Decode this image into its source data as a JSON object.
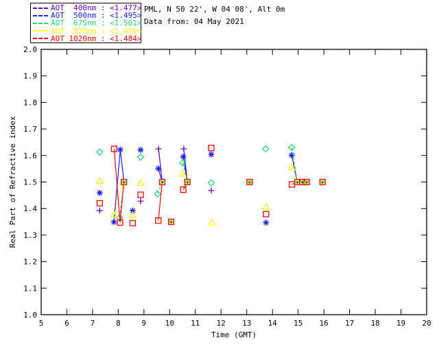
{
  "header": {
    "line1": "PML, N 50 22', W 04 08', Alt 0m",
    "line2": "Data from: 04 May 2021"
  },
  "chart_data": {
    "type": "scatter",
    "title": "",
    "xlabel": "Time (GMT)",
    "ylabel": "Real Part of Refractive index",
    "xlim": [
      5,
      20
    ],
    "ylim": [
      1.0,
      2.0
    ],
    "xticks": [
      5,
      6,
      7,
      8,
      9,
      10,
      11,
      12,
      13,
      14,
      15,
      16,
      17,
      18,
      19,
      20
    ],
    "yticks": [
      1.0,
      1.1,
      1.2,
      1.3,
      1.4,
      1.5,
      1.6,
      1.7,
      1.8,
      1.9,
      2.0
    ],
    "grid": false,
    "legend_position": "top-left",
    "series": [
      {
        "name": "AOT 400nm",
        "legend_label": "AOT  400nm : <1.477>",
        "mean_value": "<1.477>",
        "color": "#5d00c0",
        "marker": "plus",
        "dash": "",
        "points": [
          [
            7.28,
            1.392
          ],
          [
            8.87,
            1.428
          ],
          [
            9.57,
            1.625
          ],
          [
            10.55,
            1.625
          ],
          [
            11.62,
            1.468
          ]
        ],
        "segments": [
          [
            [
              9.57,
              1.625
            ],
            [
              9.71,
              1.5
            ]
          ],
          [
            [
              10.55,
              1.625
            ],
            [
              10.69,
              1.5
            ]
          ]
        ]
      },
      {
        "name": "AOT 500nm",
        "legend_label": "AOT  500nm : <1.495>",
        "mean_value": "<1.495>",
        "color": "#1a1aee",
        "marker": "asterisk",
        "dash": "",
        "points": [
          [
            7.28,
            1.459
          ],
          [
            7.83,
            1.349
          ],
          [
            8.08,
            1.622
          ],
          [
            8.56,
            1.392
          ],
          [
            8.87,
            1.621
          ],
          [
            9.56,
            1.551
          ],
          [
            10.53,
            1.595
          ],
          [
            11.62,
            1.604
          ],
          [
            13.75,
            1.347
          ],
          [
            14.75,
            1.601
          ]
        ],
        "segments": [
          [
            [
              7.83,
              1.349
            ],
            [
              8.08,
              1.622
            ],
            [
              8.22,
              1.5
            ]
          ],
          [
            [
              9.56,
              1.551
            ],
            [
              9.71,
              1.5
            ]
          ],
          [
            [
              10.53,
              1.595
            ],
            [
              10.69,
              1.5
            ]
          ],
          [
            [
              14.75,
              1.601
            ],
            [
              14.97,
              1.5
            ]
          ]
        ]
      },
      {
        "name": "AOT 675nm",
        "legend_label": "AOT  675nm : <1.501>",
        "mean_value": "<1.501>",
        "color": "#2bd07d",
        "marker": "diamond",
        "dash": "4,3",
        "points": [
          [
            7.28,
            1.613
          ],
          [
            8.05,
            1.365
          ],
          [
            8.87,
            1.594
          ],
          [
            9.53,
            1.455
          ],
          [
            10.51,
            1.572
          ],
          [
            11.62,
            1.497
          ],
          [
            13.74,
            1.625
          ],
          [
            14.75,
            1.63
          ]
        ],
        "segments": [
          [
            [
              8.05,
              1.365
            ],
            [
              8.22,
              1.5
            ]
          ],
          [
            [
              9.53,
              1.455
            ],
            [
              9.71,
              1.5
            ]
          ],
          [
            [
              10.51,
              1.572
            ],
            [
              10.69,
              1.5
            ]
          ],
          [
            [
              14.75,
              1.63
            ],
            [
              14.97,
              1.5
            ]
          ]
        ]
      },
      {
        "name": "AOT 870nm",
        "legend_label": "AOT  870nm : <1.479>",
        "mean_value": "<1.479>",
        "color": "#ffff00",
        "marker": "triangle",
        "dash": "4,3",
        "points": [
          [
            7.28,
            1.504
          ],
          [
            7.84,
            1.377
          ],
          [
            8.56,
            1.375
          ],
          [
            8.87,
            1.497
          ],
          [
            10.51,
            1.532
          ],
          [
            11.64,
            1.347
          ],
          [
            13.75,
            1.407
          ],
          [
            14.74,
            1.556
          ]
        ],
        "segments": [
          [
            [
              7.84,
              1.377
            ],
            [
              8.22,
              1.5
            ]
          ],
          [
            [
              10.51,
              1.532
            ],
            [
              10.69,
              1.5
            ]
          ],
          [
            [
              14.74,
              1.556
            ],
            [
              14.97,
              1.5
            ]
          ]
        ]
      },
      {
        "name": "AOT 1020nm",
        "legend_label": "AOT 1020nm : <1.484>",
        "mean_value": "<1.484>",
        "color": "#ee0000",
        "marker": "square",
        "dash": "",
        "points": [
          [
            7.28,
            1.42
          ],
          [
            7.84,
            1.625
          ],
          [
            8.07,
            1.347
          ],
          [
            8.56,
            1.345
          ],
          [
            8.87,
            1.452
          ],
          [
            9.56,
            1.355
          ],
          [
            10.53,
            1.471
          ],
          [
            11.62,
            1.628
          ],
          [
            13.75,
            1.379
          ],
          [
            14.76,
            1.491
          ]
        ],
        "segments": [
          [
            [
              7.84,
              1.625
            ],
            [
              8.07,
              1.347
            ],
            [
              8.22,
              1.5
            ]
          ],
          [
            [
              9.56,
              1.355
            ],
            [
              9.71,
              1.5
            ]
          ],
          [
            [
              10.53,
              1.471
            ],
            [
              10.69,
              1.5
            ]
          ],
          [
            [
              14.76,
              1.491
            ],
            [
              14.97,
              1.5
            ],
            [
              15.16,
              1.5
            ],
            [
              15.33,
              1.5
            ]
          ]
        ]
      }
    ],
    "overlap_points": [
      [
        8.22,
        1.5
      ],
      [
        9.71,
        1.5
      ],
      [
        10.06,
        1.35
      ],
      [
        10.69,
        1.5
      ],
      [
        13.11,
        1.5
      ],
      [
        14.97,
        1.5
      ],
      [
        15.16,
        1.5
      ],
      [
        15.33,
        1.5
      ],
      [
        15.95,
        1.5
      ]
    ]
  }
}
